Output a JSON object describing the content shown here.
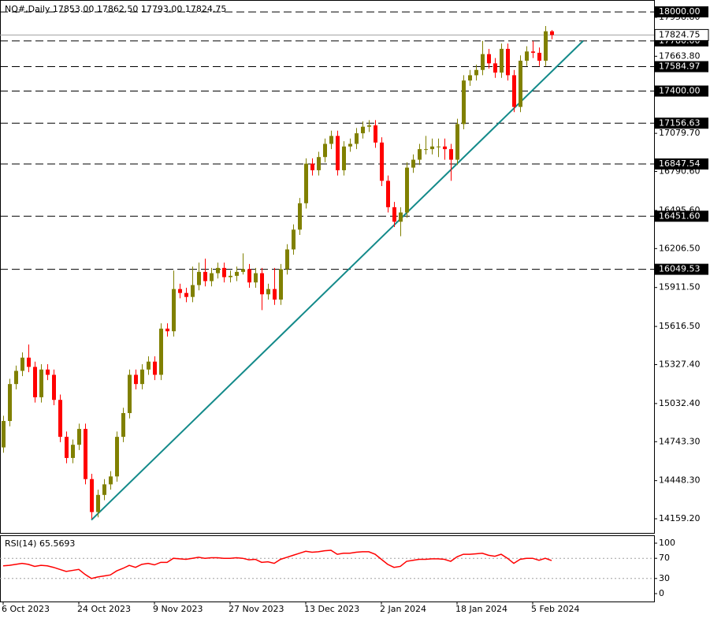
{
  "chart_data": {
    "type": "candlestick",
    "title": "NQ#,Daily  17853.00 17862.50 17793.00 17824.75",
    "categories": [
      "6 Oct 2023",
      null,
      null,
      null,
      null,
      null,
      null,
      null,
      null,
      null,
      null,
      null,
      "24 Oct 2023",
      null,
      null,
      null,
      null,
      null,
      null,
      null,
      null,
      null,
      null,
      null,
      "9 Nov 2023",
      null,
      null,
      null,
      null,
      null,
      null,
      null,
      null,
      null,
      null,
      null,
      "27 Nov 2023",
      null,
      null,
      null,
      null,
      null,
      null,
      null,
      null,
      null,
      null,
      null,
      "13 Dec 2023",
      null,
      null,
      null,
      null,
      null,
      null,
      null,
      null,
      null,
      null,
      null,
      "2 Jan 2024",
      null,
      null,
      null,
      null,
      null,
      null,
      null,
      null,
      null,
      null,
      null,
      "18 Jan 2024",
      null,
      null,
      null,
      null,
      null,
      null,
      null,
      null,
      null,
      null,
      null,
      "5 Feb 2024",
      null,
      null,
      null
    ],
    "open": [
      14700,
      14900,
      15180,
      15280,
      15380,
      15310,
      15080,
      15290,
      15250,
      15060,
      14780,
      14620,
      14720,
      14840,
      14460,
      14210,
      14340,
      14420,
      14480,
      14780,
      14960,
      15250,
      15180,
      15290,
      15350,
      15250,
      15600,
      15580,
      15900,
      15870,
      15840,
      15930,
      16030,
      15960,
      16020,
      16060,
      15990,
      16000,
      16030,
      16050,
      15950,
      16020,
      15860,
      15900,
      15820,
      16050,
      16200,
      16350,
      16550,
      16850,
      16800,
      16900,
      17000,
      17060,
      16800,
      16980,
      17000,
      17080,
      17130,
      17140,
      17010,
      16720,
      16520,
      16410,
      16480,
      16820,
      16880,
      16960,
      16960,
      16980,
      16980,
      16960,
      16880,
      17150,
      17480,
      17520,
      17560,
      17680,
      17610,
      17540,
      17720,
      17520,
      17280,
      17630,
      17700,
      17690,
      17630,
      17853
    ],
    "high": [
      14940,
      15220,
      15320,
      15420,
      15480,
      15350,
      15330,
      15330,
      15290,
      15100,
      14820,
      14760,
      14880,
      14880,
      14500,
      14380,
      14460,
      14520,
      14820,
      15000,
      15290,
      15290,
      15330,
      15390,
      15390,
      15640,
      15640,
      16040,
      15940,
      15910,
      16070,
      16100,
      16130,
      16060,
      16100,
      16100,
      16040,
      16070,
      16170,
      16090,
      16060,
      16060,
      15940,
      16060,
      16090,
      16240,
      16390,
      16590,
      16890,
      16890,
      16940,
      17040,
      17100,
      17100,
      17020,
      17040,
      17120,
      17170,
      17180,
      17180,
      17050,
      16760,
      16560,
      16520,
      16860,
      16920,
      17000,
      17060,
      17040,
      17040,
      17040,
      17000,
      17190,
      17520,
      17560,
      17600,
      17780,
      17720,
      17650,
      17760,
      17760,
      17560,
      17670,
      17740,
      17780,
      17730,
      17893,
      17862.5
    ],
    "low": [
      14660,
      14860,
      15140,
      15240,
      15270,
      15040,
      15040,
      15210,
      15020,
      14740,
      14580,
      14580,
      14680,
      14420,
      14159,
      14170,
      14300,
      14380,
      14440,
      14740,
      14920,
      15140,
      15140,
      15250,
      15210,
      15210,
      15540,
      15540,
      15830,
      15800,
      15800,
      15890,
      15920,
      15920,
      15980,
      15950,
      15950,
      15960,
      16010,
      15910,
      15910,
      15740,
      15820,
      15780,
      15780,
      16010,
      16160,
      16310,
      16510,
      16760,
      16760,
      16860,
      16960,
      16760,
      16760,
      16940,
      16960,
      17040,
      17090,
      16970,
      16680,
      16480,
      16370,
      16300,
      16440,
      16780,
      16840,
      16920,
      16920,
      16900,
      16880,
      16720,
      16840,
      17110,
      17440,
      17480,
      17520,
      17570,
      17500,
      17500,
      17480,
      17240,
      17240,
      17590,
      17650,
      17590,
      17590,
      17793
    ],
    "close": [
      14900,
      15180,
      15280,
      15380,
      15310,
      15080,
      15290,
      15250,
      15060,
      14780,
      14620,
      14720,
      14840,
      14460,
      14210,
      14340,
      14420,
      14480,
      14780,
      14960,
      15250,
      15180,
      15290,
      15350,
      15250,
      15600,
      15580,
      15900,
      15870,
      15840,
      15930,
      16030,
      15960,
      16020,
      16060,
      15990,
      16000,
      16030,
      16050,
      15950,
      16020,
      15860,
      15900,
      15820,
      16050,
      16200,
      16350,
      16550,
      16850,
      16800,
      16900,
      17000,
      17060,
      16800,
      16980,
      17000,
      17080,
      17130,
      17140,
      17010,
      16720,
      16520,
      16410,
      16480,
      16820,
      16880,
      16960,
      16960,
      16980,
      16980,
      16960,
      16880,
      17150,
      17480,
      17520,
      17560,
      17680,
      17610,
      17540,
      17720,
      17520,
      17280,
      17630,
      17700,
      17690,
      17630,
      17853,
      17824.75
    ],
    "up_color": "#808000",
    "down_color": "#ff0000",
    "ylim": [
      14052,
      18090
    ],
    "yticks": [
      {
        "value": 14159.2,
        "label": "14159.20"
      },
      {
        "value": 14448.3,
        "label": "14448.30"
      },
      {
        "value": 14743.3,
        "label": "14743.30"
      },
      {
        "value": 15032.4,
        "label": "15032.40"
      },
      {
        "value": 15327.4,
        "label": "15327.40"
      },
      {
        "value": 15616.5,
        "label": "15616.50"
      },
      {
        "value": 15911.5,
        "label": "15911.50"
      },
      {
        "value": 16206.5,
        "label": "16206.50"
      },
      {
        "value": 16495.6,
        "label": "16495.60"
      },
      {
        "value": 16790.6,
        "label": "16790.60"
      },
      {
        "value": 17079.7,
        "label": "17079.70"
      },
      {
        "value": 17663.8,
        "label": "17663.80"
      },
      {
        "value": 17958.8,
        "label": "17958.80"
      }
    ],
    "levels": [
      {
        "value": 18000,
        "label": "18000.00"
      },
      {
        "value": 17780,
        "label": "17780.00"
      },
      17584.97,
      {
        "value": 17400,
        "label": "17400.00"
      },
      17156.63,
      16847.54,
      {
        "value": 16451.6,
        "label": "16451.60"
      },
      16049.53
    ],
    "price_line": 17824.75,
    "trendline": {
      "x": [
        14,
        92
      ],
      "values": [
        14150,
        17780
      ],
      "color": "#138a8a"
    },
    "rsi": {
      "title": "RSI(14) 65.5693",
      "color": "#ff0000",
      "values": [
        55,
        56,
        58,
        60,
        58,
        54,
        56,
        55,
        52,
        48,
        44,
        46,
        48,
        38,
        30,
        33,
        35,
        37,
        45,
        50,
        56,
        52,
        58,
        60,
        57,
        62,
        62,
        70,
        69,
        68,
        70,
        72,
        70,
        71,
        71,
        70,
        70,
        71,
        70,
        67,
        68,
        62,
        63,
        60,
        68,
        72,
        76,
        80,
        84,
        82,
        83,
        85,
        86,
        78,
        80,
        80,
        82,
        83,
        83,
        78,
        68,
        58,
        52,
        54,
        64,
        66,
        68,
        68,
        69,
        69,
        68,
        64,
        73,
        78,
        78,
        79,
        80,
        76,
        74,
        78,
        70,
        60,
        68,
        70,
        70,
        66,
        70,
        65.5693
      ],
      "ylim": [
        0,
        100
      ],
      "yticks": [
        0,
        30,
        70,
        100
      ],
      "levels": [
        30,
        70
      ]
    }
  }
}
